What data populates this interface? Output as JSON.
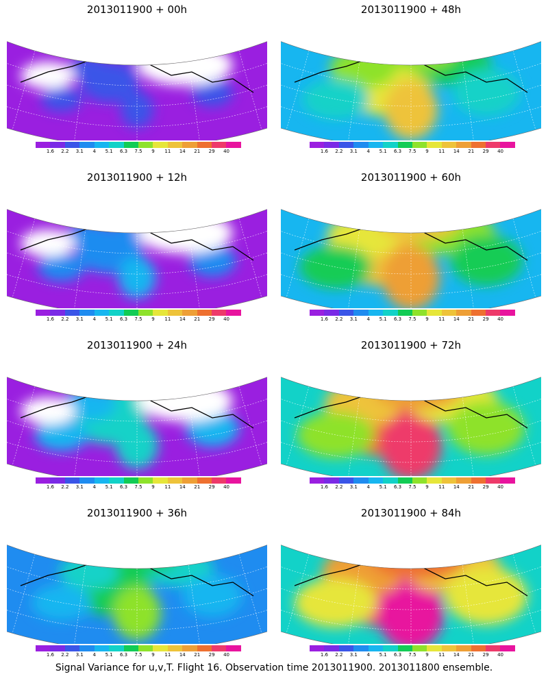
{
  "panels": [
    {
      "title": "2013011900 + 00h",
      "spread": 0.0
    },
    {
      "title": "2013011900 + 48h",
      "spread": 0.62
    },
    {
      "title": "2013011900 + 12h",
      "spread": 0.15
    },
    {
      "title": "2013011900 + 60h",
      "spread": 0.75
    },
    {
      "title": "2013011900 + 24h",
      "spread": 0.3
    },
    {
      "title": "2013011900 + 72h",
      "spread": 0.87
    },
    {
      "title": "2013011900 + 36h",
      "spread": 0.45
    },
    {
      "title": "2013011900 + 84h",
      "spread": 1.0
    }
  ],
  "colorbar": {
    "labels": [
      "1.6",
      "2.2",
      "3.1",
      "4",
      "5.1",
      "6.3",
      "7.5",
      "9",
      "11",
      "14",
      "21",
      "29",
      "40"
    ],
    "colors": [
      "#9a1fe0",
      "#7a2ae6",
      "#3a55e8",
      "#1f8cf0",
      "#17b6f0",
      "#12d2c8",
      "#12cc55",
      "#8ee22b",
      "#e6e63a",
      "#eec33a",
      "#ee9f36",
      "#ee7030",
      "#ee3a6a",
      "#e8149e"
    ]
  },
  "footer": "Signal Variance for u,v,T. Flight 16. Observation time 2013011900. 2013011800 ensemble."
}
